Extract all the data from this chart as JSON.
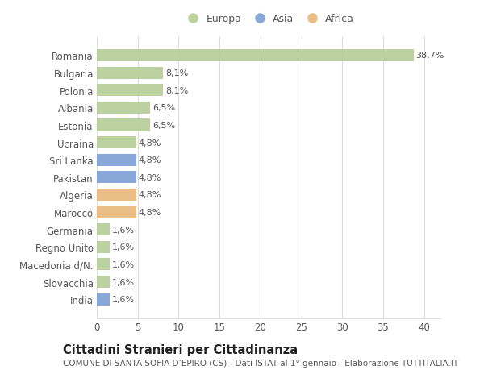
{
  "categories": [
    "Romania",
    "Bulgaria",
    "Polonia",
    "Albania",
    "Estonia",
    "Ucraina",
    "Sri Lanka",
    "Pakistan",
    "Algeria",
    "Marocco",
    "Germania",
    "Regno Unito",
    "Macedonia d/N.",
    "Slovacchia",
    "India"
  ],
  "values": [
    38.7,
    8.1,
    8.1,
    6.5,
    6.5,
    4.8,
    4.8,
    4.8,
    4.8,
    4.8,
    1.6,
    1.6,
    1.6,
    1.6,
    1.6
  ],
  "continents": [
    "Europa",
    "Europa",
    "Europa",
    "Europa",
    "Europa",
    "Europa",
    "Asia",
    "Asia",
    "Africa",
    "Africa",
    "Europa",
    "Europa",
    "Europa",
    "Europa",
    "Asia"
  ],
  "labels": [
    "38,7%",
    "8,1%",
    "8,1%",
    "6,5%",
    "6,5%",
    "4,8%",
    "4,8%",
    "4,8%",
    "4,8%",
    "4,8%",
    "1,6%",
    "1,6%",
    "1,6%",
    "1,6%",
    "1,6%"
  ],
  "colors": {
    "Europa": "#b5cc96",
    "Asia": "#7b9fd4",
    "Africa": "#e8b87a"
  },
  "legend_labels": [
    "Europa",
    "Asia",
    "Africa"
  ],
  "xlim": [
    0,
    42
  ],
  "xticks": [
    0,
    5,
    10,
    15,
    20,
    25,
    30,
    35,
    40
  ],
  "title": "Cittadini Stranieri per Cittadinanza",
  "subtitle": "COMUNE DI SANTA SOFIA D’EPIRO (CS) - Dati ISTAT al 1° gennaio - Elaborazione TUTTITALIA.IT",
  "background_color": "#ffffff",
  "grid_color": "#dddddd",
  "bar_height": 0.7,
  "label_fontsize": 8,
  "ytick_fontsize": 8.5,
  "xtick_fontsize": 8.5,
  "title_fontsize": 10.5,
  "subtitle_fontsize": 7.5
}
